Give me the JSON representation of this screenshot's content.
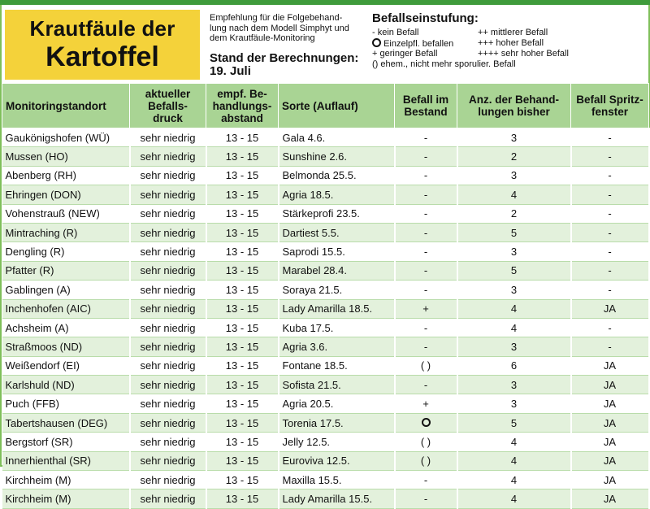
{
  "title": {
    "line1": "Krautfäule der",
    "line2": "Kartoffel"
  },
  "recommendation": {
    "lines": [
      "Empfehlung für die Folgebehand-",
      "lung nach dem Modell Simphyt und",
      "dem Krautfäule-Monitoring"
    ]
  },
  "stand": {
    "label": "Stand der Berechnungen:",
    "date": "19. Juli"
  },
  "legend": {
    "title": "Befallseinstufung:",
    "items": [
      {
        "sym": "-",
        "text": "kein Befall"
      },
      {
        "sym": "++",
        "text": "mittlerer Befall"
      },
      {
        "sym": "circle",
        "text": "Einzelpfl. befallen"
      },
      {
        "sym": "+++",
        "text": "hoher Befall"
      },
      {
        "sym": "+",
        "text": "geringer Befall"
      },
      {
        "sym": "++++",
        "text": "sehr hoher Befall"
      },
      {
        "sym": "()",
        "text": "ehem., nicht mehr sporulier. Befall"
      }
    ]
  },
  "columns": [
    "Monitoringstandort",
    "aktueller Befalls-druck",
    "empf. Be-handlungs-abstand",
    "Sorte (Auflauf)",
    "Befall im Bestand",
    "Anz. der Behand-lungen bisher",
    "Befall Spritz-fenster"
  ],
  "column_lines": [
    [
      "Monitoringstandort"
    ],
    [
      "aktueller",
      "Befalls-",
      "druck"
    ],
    [
      "empf. Be-",
      "handlungs-",
      "abstand"
    ],
    [
      "Sorte (Auflauf)"
    ],
    [
      "Befall im",
      "Bestand"
    ],
    [
      "Anz. der Behand-",
      "lungen bisher"
    ],
    [
      "Befall Spritz-",
      "fenster"
    ]
  ],
  "rows": [
    {
      "standort": "Gaukönigshofen (WÜ)",
      "druck": "sehr niedrig",
      "abstand": "13 - 15",
      "sorte": "Gala 4.6.",
      "befall": "-",
      "anzahl": "3",
      "spritz": "-"
    },
    {
      "standort": "Mussen (HO)",
      "druck": "sehr niedrig",
      "abstand": "13 - 15",
      "sorte": "Sunshine 2.6.",
      "befall": "-",
      "anzahl": "2",
      "spritz": "-"
    },
    {
      "standort": "Abenberg (RH)",
      "druck": "sehr niedrig",
      "abstand": "13 - 15",
      "sorte": "Belmonda 25.5.",
      "befall": "-",
      "anzahl": "3",
      "spritz": "-"
    },
    {
      "standort": "Ehringen (DON)",
      "druck": "sehr niedrig",
      "abstand": "13 - 15",
      "sorte": "Agria 18.5.",
      "befall": "-",
      "anzahl": "4",
      "spritz": "-"
    },
    {
      "standort": "Vohenstrauß (NEW)",
      "druck": "sehr niedrig",
      "abstand": "13 - 15",
      "sorte": "Stärkeprofi 23.5.",
      "befall": "-",
      "anzahl": "2",
      "spritz": "-"
    },
    {
      "standort": "Mintraching (R)",
      "druck": "sehr niedrig",
      "abstand": "13 - 15",
      "sorte": "Dartiest 5.5.",
      "befall": "-",
      "anzahl": "5",
      "spritz": "-"
    },
    {
      "standort": "Dengling (R)",
      "druck": "sehr niedrig",
      "abstand": "13 - 15",
      "sorte": "Saprodi 15.5.",
      "befall": "-",
      "anzahl": "3",
      "spritz": "-"
    },
    {
      "standort": "Pfatter (R)",
      "druck": "sehr niedrig",
      "abstand": "13 - 15",
      "sorte": "Marabel 28.4.",
      "befall": "-",
      "anzahl": "5",
      "spritz": "-"
    },
    {
      "standort": "Gablingen (A)",
      "druck": "sehr niedrig",
      "abstand": "13 - 15",
      "sorte": "Soraya 21.5.",
      "befall": "-",
      "anzahl": "3",
      "spritz": "-"
    },
    {
      "standort": "Inchenhofen (AIC)",
      "druck": "sehr niedrig",
      "abstand": "13 - 15",
      "sorte": "Lady Amarilla 18.5.",
      "befall": "+",
      "anzahl": "4",
      "spritz": "JA"
    },
    {
      "standort": "Achsheim (A)",
      "druck": "sehr niedrig",
      "abstand": "13 - 15",
      "sorte": "Kuba 17.5.",
      "befall": "-",
      "anzahl": "4",
      "spritz": "-"
    },
    {
      "standort": "Straßmoos (ND)",
      "druck": "sehr niedrig",
      "abstand": "13 - 15",
      "sorte": "Agria 3.6.",
      "befall": "-",
      "anzahl": "3",
      "spritz": "-"
    },
    {
      "standort": "Weißendorf (EI)",
      "druck": "sehr niedrig",
      "abstand": "13 - 15",
      "sorte": "Fontane 18.5.",
      "befall": "( )",
      "anzahl": "6",
      "spritz": "JA"
    },
    {
      "standort": "Karlshuld (ND)",
      "druck": "sehr niedrig",
      "abstand": "13 - 15",
      "sorte": "Sofista 21.5.",
      "befall": "-",
      "anzahl": "3",
      "spritz": "JA"
    },
    {
      "standort": "Puch (FFB)",
      "druck": "sehr niedrig",
      "abstand": "13 - 15",
      "sorte": "Agria 20.5.",
      "befall": "+",
      "anzahl": "3",
      "spritz": "JA"
    },
    {
      "standort": "Tabertshausen (DEG)",
      "druck": "sehr niedrig",
      "abstand": "13 - 15",
      "sorte": "Torenia 17.5.",
      "befall": "circle",
      "anzahl": "5",
      "spritz": "JA"
    },
    {
      "standort": "Bergstorf (SR)",
      "druck": "sehr niedrig",
      "abstand": "13 - 15",
      "sorte": "Jelly 12.5.",
      "befall": "( )",
      "anzahl": "4",
      "spritz": "JA"
    },
    {
      "standort": "Innerhienthal (SR)",
      "druck": "sehr niedrig",
      "abstand": "13 - 15",
      "sorte": "Euroviva 12.5.",
      "befall": "( )",
      "anzahl": "4",
      "spritz": "JA"
    },
    {
      "standort": "Kirchheim (M)",
      "druck": "sehr niedrig",
      "abstand": "13 - 15",
      "sorte": "Maxilla 15.5.",
      "befall": "-",
      "anzahl": "4",
      "spritz": "JA"
    },
    {
      "standort": "Kirchheim (M)",
      "druck": "sehr niedrig",
      "abstand": "13 - 15",
      "sorte": "Lady Amarilla 15.5.",
      "befall": "-",
      "anzahl": "4",
      "spritz": "JA"
    }
  ]
}
